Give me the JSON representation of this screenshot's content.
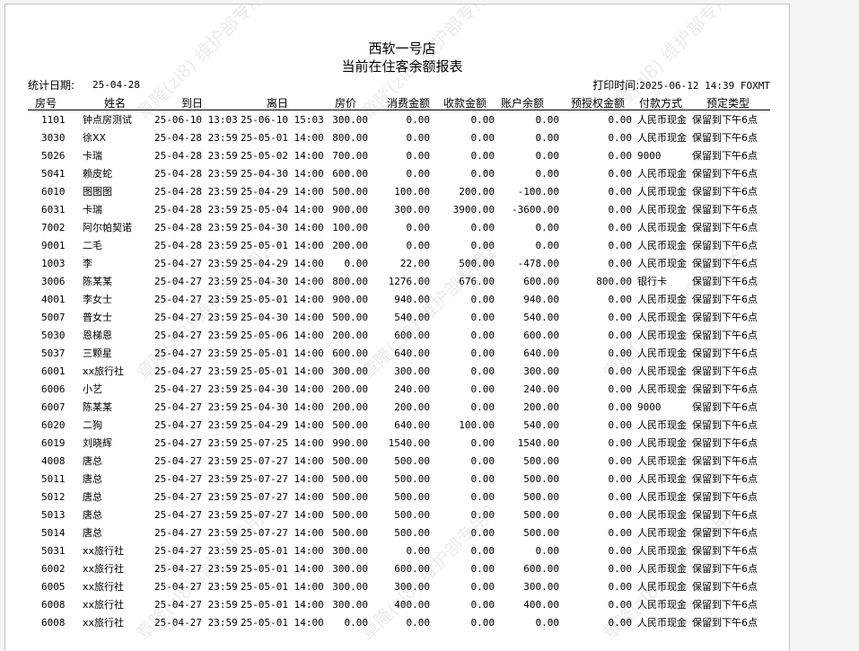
{
  "report": {
    "store": "西软一号店",
    "title": "当前在住客余额报表",
    "stat_date_label": "统计日期:",
    "stat_date": "25-04-28",
    "print_time_label": "打印时间:",
    "print_time": "2025-06-12 14:39 FOXMT",
    "watermark": "章隆(zl8) 维护部专用2"
  },
  "columns": [
    "房号",
    "姓名",
    "到日",
    "离日",
    "房价",
    "消费金额",
    "收款金额",
    "账户余额",
    "预授权金额",
    "付款方式",
    "预定类型"
  ],
  "rows": [
    [
      "1101",
      "钟点房测试",
      "25-06-10 13:03",
      "25-06-10 15:03",
      "300.00",
      "0.00",
      "0.00",
      "0.00",
      "0.00",
      "人民币现金",
      "保留到下午6点"
    ],
    [
      "3030",
      "徐XX",
      "25-04-28 23:59",
      "25-05-01 14:00",
      "800.00",
      "0.00",
      "0.00",
      "0.00",
      "0.00",
      "人民币现金",
      "保留到下午6点"
    ],
    [
      "5026",
      "卡瑞",
      "25-04-28 23:59",
      "25-05-02 14:00",
      "700.00",
      "0.00",
      "0.00",
      "0.00",
      "0.00",
      "9000",
      "保留到下午6点"
    ],
    [
      "5041",
      "赖皮蛇",
      "25-04-28 23:59",
      "25-04-30 14:00",
      "600.00",
      "0.00",
      "0.00",
      "0.00",
      "0.00",
      "人民币现金",
      "保留到下午6点"
    ],
    [
      "6010",
      "图图图",
      "25-04-28 23:59",
      "25-04-29 14:00",
      "500.00",
      "100.00",
      "200.00",
      "-100.00",
      "0.00",
      "人民币现金",
      "保留到下午6点"
    ],
    [
      "6031",
      "卡瑞",
      "25-04-28 23:59",
      "25-05-04 14:00",
      "900.00",
      "300.00",
      "3900.00",
      "-3600.00",
      "0.00",
      "人民币现金",
      "保留到下午6点"
    ],
    [
      "7002",
      "阿尔帕契诺",
      "25-04-28 23:59",
      "25-04-30 14:00",
      "100.00",
      "0.00",
      "0.00",
      "0.00",
      "0.00",
      "人民币现金",
      "保留到下午6点"
    ],
    [
      "9001",
      "二毛",
      "25-04-28 23:59",
      "25-05-01 14:00",
      "200.00",
      "0.00",
      "0.00",
      "0.00",
      "0.00",
      "人民币现金",
      "保留到下午6点"
    ],
    [
      "1003",
      "李",
      "25-04-27 23:59",
      "25-04-29 14:00",
      "0.00",
      "22.00",
      "500.00",
      "-478.00",
      "0.00",
      "人民币现金",
      "保留到下午6点"
    ],
    [
      "3006",
      "陈某某",
      "25-04-27 23:59",
      "25-04-30 14:00",
      "800.00",
      "1276.00",
      "676.00",
      "600.00",
      "800.00",
      "银行卡",
      "保留到下午6点"
    ],
    [
      "4001",
      "李女士",
      "25-04-27 23:59",
      "25-05-01 14:00",
      "900.00",
      "940.00",
      "0.00",
      "940.00",
      "0.00",
      "人民币现金",
      "保留到下午6点"
    ],
    [
      "5007",
      "普女士",
      "25-04-27 23:59",
      "25-04-30 14:00",
      "500.00",
      "540.00",
      "0.00",
      "540.00",
      "0.00",
      "人民币现金",
      "保留到下午6点"
    ],
    [
      "5030",
      "恩梯恩",
      "25-04-27 23:59",
      "25-05-06 14:00",
      "200.00",
      "600.00",
      "0.00",
      "600.00",
      "0.00",
      "人民币现金",
      "保留到下午6点"
    ],
    [
      "5037",
      "三颗星",
      "25-04-27 23:59",
      "25-05-01 14:00",
      "600.00",
      "640.00",
      "0.00",
      "640.00",
      "0.00",
      "人民币现金",
      "保留到下午6点"
    ],
    [
      "6001",
      "xx旅行社",
      "25-04-27 23:59",
      "25-05-01 14:00",
      "300.00",
      "300.00",
      "0.00",
      "300.00",
      "0.00",
      "人民币现金",
      "保留到下午6点"
    ],
    [
      "6006",
      "小艺",
      "25-04-27 23:59",
      "25-04-30 14:00",
      "200.00",
      "240.00",
      "0.00",
      "240.00",
      "0.00",
      "人民币现金",
      "保留到下午6点"
    ],
    [
      "6007",
      "陈某某",
      "25-04-27 23:59",
      "25-04-30 14:00",
      "200.00",
      "200.00",
      "0.00",
      "200.00",
      "0.00",
      "9000",
      "保留到下午6点"
    ],
    [
      "6020",
      "二狗",
      "25-04-27 23:59",
      "25-04-29 14:00",
      "500.00",
      "640.00",
      "100.00",
      "540.00",
      "0.00",
      "人民币现金",
      "保留到下午6点"
    ],
    [
      "6019",
      "刘晓辉",
      "25-04-27 23:59",
      "25-07-25 14:00",
      "990.00",
      "1540.00",
      "0.00",
      "1540.00",
      "0.00",
      "人民币现金",
      "保留到下午6点"
    ],
    [
      "4008",
      "唐总",
      "25-04-27 23:59",
      "25-07-27 14:00",
      "500.00",
      "500.00",
      "0.00",
      "500.00",
      "0.00",
      "人民币现金",
      "保留到下午6点"
    ],
    [
      "5011",
      "唐总",
      "25-04-27 23:59",
      "25-07-27 14:00",
      "500.00",
      "500.00",
      "0.00",
      "500.00",
      "0.00",
      "人民币现金",
      "保留到下午6点"
    ],
    [
      "5012",
      "唐总",
      "25-04-27 23:59",
      "25-07-27 14:00",
      "500.00",
      "500.00",
      "0.00",
      "500.00",
      "0.00",
      "人民币现金",
      "保留到下午6点"
    ],
    [
      "5013",
      "唐总",
      "25-04-27 23:59",
      "25-07-27 14:00",
      "500.00",
      "500.00",
      "0.00",
      "500.00",
      "0.00",
      "人民币现金",
      "保留到下午6点"
    ],
    [
      "5014",
      "唐总",
      "25-04-27 23:59",
      "25-07-27 14:00",
      "500.00",
      "500.00",
      "0.00",
      "500.00",
      "0.00",
      "人民币现金",
      "保留到下午6点"
    ],
    [
      "5031",
      "xx旅行社",
      "25-04-27 23:59",
      "25-05-01 14:00",
      "300.00",
      "0.00",
      "0.00",
      "0.00",
      "0.00",
      "人民币现金",
      "保留到下午6点"
    ],
    [
      "6002",
      "xx旅行社",
      "25-04-27 23:59",
      "25-05-01 14:00",
      "300.00",
      "600.00",
      "0.00",
      "600.00",
      "0.00",
      "人民币现金",
      "保留到下午6点"
    ],
    [
      "6005",
      "xx旅行社",
      "25-04-27 23:59",
      "25-05-01 14:00",
      "300.00",
      "300.00",
      "0.00",
      "300.00",
      "0.00",
      "人民币现金",
      "保留到下午6点"
    ],
    [
      "6008",
      "xx旅行社",
      "25-04-27 23:59",
      "25-05-01 14:00",
      "300.00",
      "400.00",
      "0.00",
      "400.00",
      "0.00",
      "人民币现金",
      "保留到下午6点"
    ],
    [
      "6008",
      "xx旅行社",
      "25-04-27 23:59",
      "25-05-01 14:00",
      "0.00",
      "0.00",
      "0.00",
      "0.00",
      "0.00",
      "人民币现金",
      "保留到下午6点"
    ]
  ]
}
